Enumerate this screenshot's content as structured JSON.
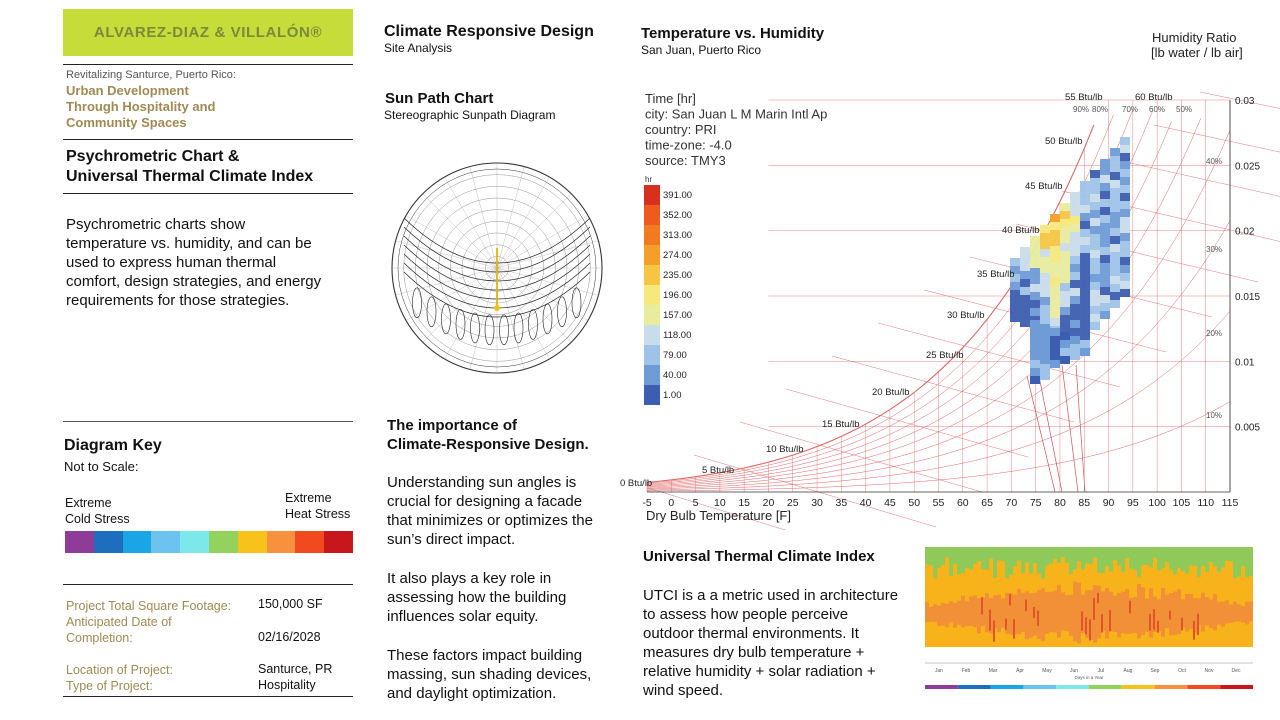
{
  "sidebar": {
    "logo": "ALVAREZ-DIAZ & VILLALÓN®",
    "subtitle": "Revitalizing Santurce, Puerto Rico:",
    "project_title": [
      "Urban Development",
      "Through Hospitality and",
      "Community Spaces"
    ],
    "section_title": [
      "Psychrometric Chart &",
      "Universal Thermal Climate Index"
    ],
    "description": [
      "Psychrometric charts show",
      "temperature vs. humidity, and can be",
      "used to express human thermal",
      "comfort, design strategies, and energy",
      "requirements for those strategies."
    ],
    "key_title": "Diagram Key",
    "key_subtitle": "Not to Scale:",
    "key_left": [
      "Extreme",
      "Cold Stress"
    ],
    "key_right": [
      "Extreme",
      "Heat Stress"
    ],
    "key_colors": [
      "#8e3c97",
      "#1e6ec0",
      "#1aa6e6",
      "#6cc3f0",
      "#7de8ec",
      "#93d35d",
      "#f8c21a",
      "#f7913d",
      "#f04a1e",
      "#c8161d"
    ],
    "project_info": [
      {
        "label": "Project Total Square Footage:",
        "value": "150,000 SF"
      },
      {
        "label": "Anticipated Date of",
        "value": ""
      },
      {
        "label": "Completion:",
        "value": "02/16/2028"
      },
      {
        "label": "Location of Project:",
        "value": "Santurce, PR"
      },
      {
        "label": "Type of Project:",
        "value": "Hospitality"
      }
    ]
  },
  "middle": {
    "title": "Climate Responsive Design",
    "subtitle": "Site Analysis",
    "sunpath_title": "Sun Path Chart",
    "sunpath_subtitle": "Stereographic Sunpath Diagram",
    "importance_title": [
      "The importance of",
      "Climate-Responsive Design."
    ],
    "para1": [
      "Understanding sun angles is",
      "crucial for designing a facade",
      "that minimizes or optimizes the",
      "sun’s direct impact."
    ],
    "para2": [
      "It also plays a key role in",
      "assessing how the building",
      "influences solar equity."
    ],
    "para3": [
      "These factors impact building",
      "massing, sun shading devices,",
      "and daylight optimization."
    ]
  },
  "chart_data": [
    {
      "type": "heatmap",
      "title": "Temperature vs. Humidity",
      "subtitle": "San Juan, Puerto Rico",
      "xlabel": "Dry Bulb Temperature [F]",
      "ylabel": "Humidity Ratio [lb water / lb air]",
      "x_ticks": [
        -5,
        0,
        5,
        10,
        15,
        20,
        25,
        30,
        35,
        40,
        45,
        50,
        55,
        60,
        65,
        70,
        75,
        80,
        85,
        90,
        95,
        100,
        105,
        110,
        115
      ],
      "y_ticks": [
        "0.005",
        "0.01",
        "0.015",
        "0.02",
        "0.025",
        "0.03"
      ],
      "enthalpy_labels": [
        "0 Btu/lb",
        "5 Btu/lb",
        "10 Btu/lb",
        "15 Btu/lb",
        "20 Btu/lb",
        "25 Btu/lb",
        "30 Btu/lb",
        "35 Btu/lb",
        "40 Btu/lb",
        "45 Btu/lb",
        "50 Btu/lb",
        "55 Btu/lb",
        "60 Btu/lb"
      ],
      "rh_labels": [
        "90%",
        "80%",
        "70%",
        "60%",
        "50%",
        "40%",
        "30%",
        "20%",
        "10%"
      ],
      "info": [
        "Time [hr]",
        "city: San Juan L M Marin Intl Ap",
        "country: PRI",
        "time-zone: -4.0",
        "source: TMY3"
      ],
      "legend_unit": "hr",
      "legend_values": [
        "391.00",
        "352.00",
        "313.00",
        "274.00",
        "235.00",
        "196.00",
        "157.00",
        "118.00",
        "79.00",
        "40.00",
        "1.00"
      ],
      "legend_colors": [
        "#d7301f",
        "#ef5a1f",
        "#f27a20",
        "#f59e2a",
        "#f7c544",
        "#f4e97a",
        "#e8ec9e",
        "#c9dcea",
        "#9fc3e8",
        "#6f9bd6",
        "#3c5eb0"
      ]
    },
    {
      "type": "heatmap",
      "title": "Universal Thermal Climate Index",
      "months": [
        "Jan",
        "Feb",
        "Mar",
        "Apr",
        "May",
        "Jun",
        "Jul",
        "Aug",
        "Sep",
        "Oct",
        "Nov",
        "Dec"
      ],
      "xlabel": "Days in a Year",
      "stress_colors": [
        "#8e3c97",
        "#1e6ec0",
        "#1aa6e6",
        "#6cc3f0",
        "#7de8ec",
        "#93d35d",
        "#f8c21a",
        "#f7913d",
        "#f04a1e",
        "#c8161d"
      ]
    }
  ],
  "right": {
    "utci_title": "Universal Thermal Climate Index",
    "utci_text": [
      "UTCI is a a metric used in architecture",
      "to assess how people perceive",
      "outdoor thermal environments. It",
      "measures dry bulb temperature +",
      "relative humidity + solar radiation +",
      "wind speed."
    ]
  }
}
